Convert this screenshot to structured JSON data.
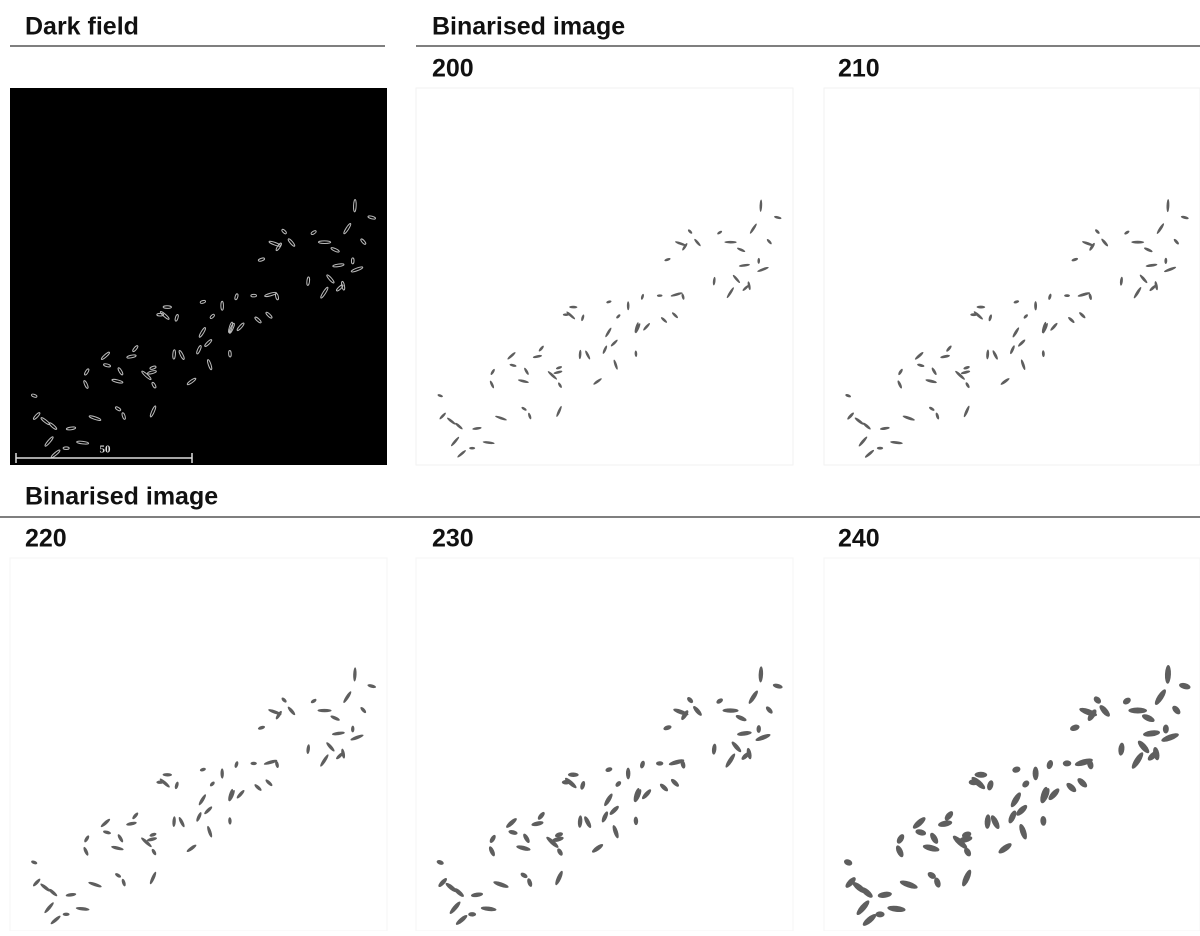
{
  "sections": [
    {
      "title": "Dark field",
      "scale_bar_label": "50"
    },
    {
      "title": "Binarised image",
      "panels": [
        "200",
        "210"
      ]
    },
    {
      "title": "Binarised image",
      "panels": [
        "220",
        "230",
        "240"
      ]
    }
  ]
}
